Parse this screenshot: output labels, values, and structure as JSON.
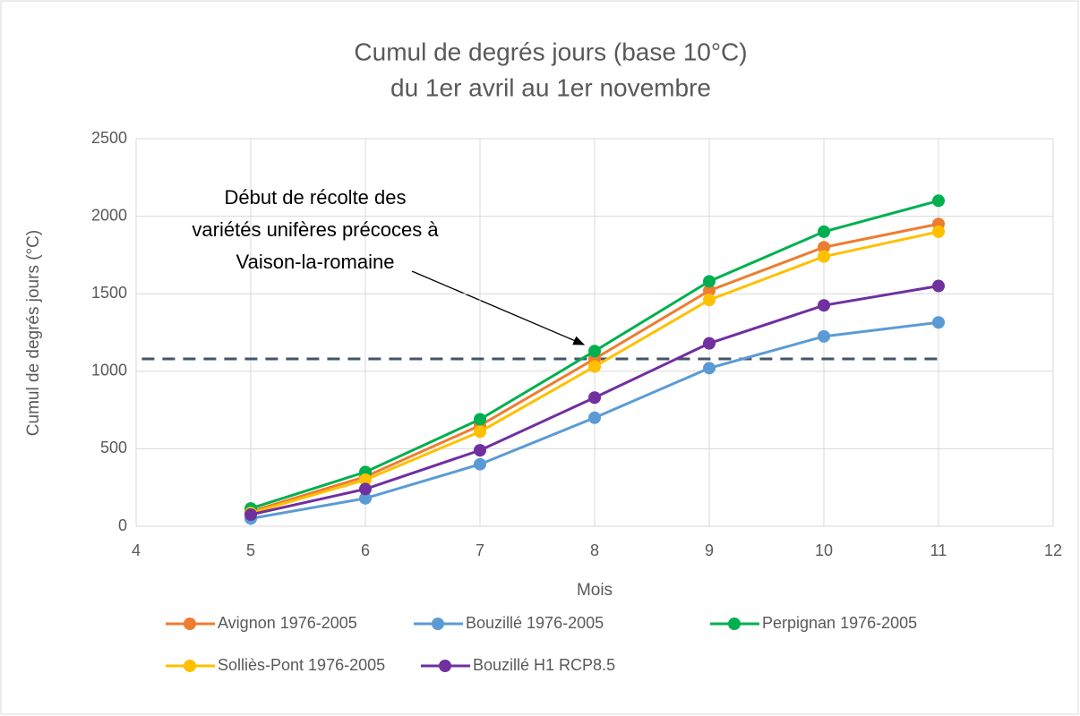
{
  "chart_data": {
    "type": "line",
    "title": [
      "Cumul de degrés jours (base 10°C)",
      "du 1er avril au 1er novembre"
    ],
    "x_label": "Mois",
    "y_label": "Cumul de degrés jours (°C)",
    "x": [
      5,
      6,
      7,
      8,
      9,
      10,
      11
    ],
    "series": [
      {
        "name": "Avignon 1976-2005",
        "color": "#ed7d31",
        "values": [
          95,
          320,
          650,
          1080,
          1520,
          1800,
          1950
        ]
      },
      {
        "name": "Bouzillé 1976-2005",
        "color": "#5b9bd5",
        "values": [
          50,
          180,
          400,
          700,
          1020,
          1225,
          1315
        ]
      },
      {
        "name": "Perpignan 1976-2005",
        "color": "#00b050",
        "values": [
          115,
          350,
          690,
          1130,
          1580,
          1900,
          2100
        ]
      },
      {
        "name": "Solliès-Pont 1976-2005",
        "color": "#ffc000",
        "values": [
          85,
          300,
          610,
          1030,
          1460,
          1740,
          1900
        ]
      },
      {
        "name": "Bouzillé H1 RCP8.5",
        "color": "#7030a0",
        "values": [
          75,
          240,
          490,
          830,
          1180,
          1425,
          1550
        ]
      }
    ],
    "xlim": [
      4,
      12
    ],
    "xticks": [
      4,
      5,
      6,
      7,
      8,
      9,
      10,
      11,
      12
    ],
    "ylim": [
      0,
      2500
    ],
    "yticks": [
      0,
      500,
      1000,
      1500,
      2000,
      2500
    ],
    "grid": true,
    "legend": "bottom",
    "threshold": {
      "y": 1080,
      "x": [
        4.05,
        11
      ],
      "color": "#44546a",
      "label": [
        "Début de récolte des",
        "variétés unifères précoces à",
        "Vaison-la-romaine"
      ]
    }
  }
}
